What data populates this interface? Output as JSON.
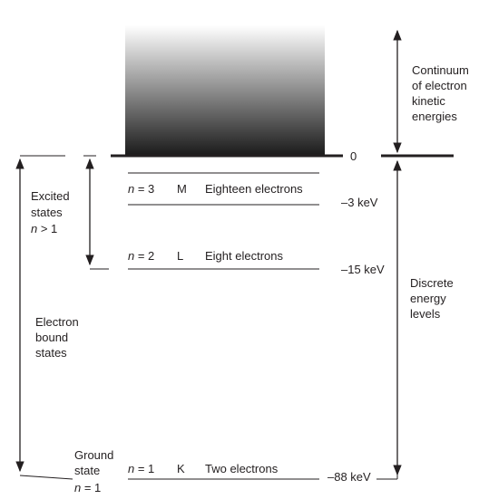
{
  "continuum_label": [
    "Continuum",
    "of electron",
    "kinetic",
    "energies"
  ],
  "zero_label": "0",
  "excited_label": [
    "Excited",
    "states"
  ],
  "excited_condition": {
    "symbol": "n",
    "rest": " > 1"
  },
  "bound_label": [
    "Electron",
    "bound",
    "states"
  ],
  "discrete_label": [
    "Discrete",
    "energy",
    "levels"
  ],
  "ground_label": [
    "Ground",
    "state"
  ],
  "ground_condition": {
    "symbol": "n",
    "rest": " = 1"
  },
  "levels": [
    {
      "n_symbol": "n",
      "n_rest": " = 3",
      "shell": "M",
      "electrons": "Eighteen electrons",
      "energy": "–3 keV"
    },
    {
      "n_symbol": "n",
      "n_rest": " = 2",
      "shell": "L",
      "electrons": "Eight electrons",
      "energy": "–15 keV"
    },
    {
      "n_symbol": "n",
      "n_rest": " = 1",
      "shell": "K",
      "electrons": "Two electrons",
      "energy": "–88 keV"
    }
  ],
  "colors": {
    "ink": "#231f20",
    "gradient_top": "#ffffff",
    "gradient_bottom": "#1a1a1a"
  }
}
